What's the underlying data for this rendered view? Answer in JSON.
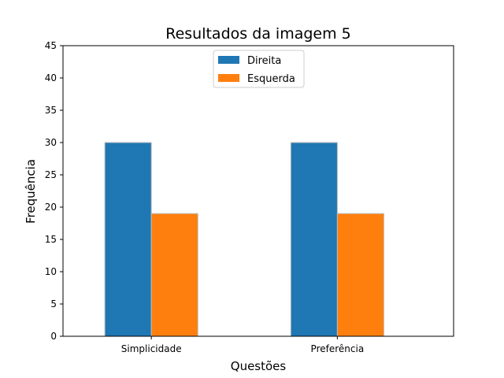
{
  "chart_data": {
    "type": "bar",
    "title": "Resultados da imagem 5",
    "xlabel": "Questões",
    "ylabel": "Frequência",
    "categories": [
      "Simplicidade",
      "Preferência"
    ],
    "series": [
      {
        "name": "Direita",
        "values": [
          30,
          30
        ],
        "color": "#1f77b4"
      },
      {
        "name": "Esquerda",
        "values": [
          19,
          19
        ],
        "color": "#ff7f0e"
      }
    ],
    "ylim": [
      0,
      45
    ],
    "yticks": [
      0,
      5,
      10,
      15,
      20,
      25,
      30,
      35,
      40,
      45
    ],
    "grid": false,
    "legend_position": "top-center"
  }
}
